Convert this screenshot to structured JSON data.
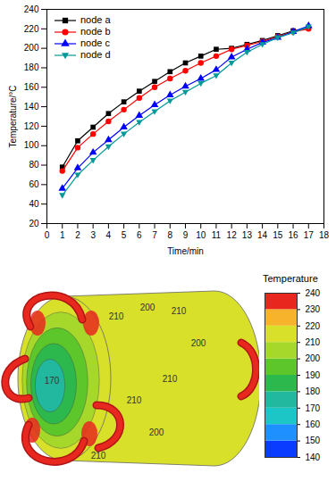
{
  "chart_data": [
    {
      "type": "line",
      "x_label": "Time/min",
      "y_label": "Temperature/°C",
      "x": [
        1,
        2,
        3,
        4,
        5,
        6,
        7,
        8,
        9,
        10,
        11,
        12,
        13,
        14,
        15,
        16,
        17
      ],
      "series": [
        {
          "name": "node a",
          "color": "#000000",
          "marker": "square",
          "values": [
            78,
            105,
            119,
            133,
            145,
            156,
            166,
            176,
            185,
            192,
            199,
            200,
            204,
            208,
            213,
            218,
            221
          ]
        },
        {
          "name": "node b",
          "color": "#ff0000",
          "marker": "circle",
          "values": [
            74,
            98,
            112,
            125,
            137,
            149,
            160,
            169,
            177,
            185,
            192,
            199,
            203,
            207,
            212,
            217,
            220
          ]
        },
        {
          "name": "node c",
          "color": "#0000ff",
          "marker": "triangle-up",
          "values": [
            56,
            77,
            93,
            106,
            119,
            131,
            142,
            152,
            161,
            169,
            178,
            191,
            199,
            206,
            211,
            217,
            223
          ]
        },
        {
          "name": "node d",
          "color": "#009999",
          "marker": "triangle-down",
          "values": [
            49,
            70,
            85,
            99,
            112,
            124,
            135,
            146,
            155,
            164,
            172,
            185,
            196,
            204,
            211,
            216,
            222
          ]
        }
      ],
      "xlim": [
        0,
        18
      ],
      "xticks": [
        0,
        1,
        2,
        3,
        4,
        5,
        6,
        7,
        8,
        9,
        10,
        11,
        12,
        13,
        14,
        15,
        16,
        17,
        18
      ],
      "ylim": [
        20,
        240
      ],
      "yticks": [
        20,
        40,
        60,
        80,
        100,
        120,
        140,
        160,
        180,
        200,
        220,
        240
      ],
      "legend": "upper left",
      "grid": false
    },
    {
      "type": "contour",
      "title": "Temperature",
      "colorbar_range": [
        140,
        240
      ],
      "colorbar_ticks": [
        140,
        150,
        160,
        170,
        180,
        190,
        200,
        210,
        220,
        230,
        240
      ],
      "colors": [
        "#0a3cff",
        "#1e90ff",
        "#1cc6c6",
        "#22b8a0",
        "#2db84d",
        "#5cc62b",
        "#a6d82c",
        "#d8e02a",
        "#f7b32b",
        "#e8281e"
      ],
      "surface": 210,
      "face_levels": [
        210,
        200,
        190,
        180,
        170
      ],
      "heater": 240,
      "contour_labels": [
        210,
        200,
        210,
        200,
        210,
        210,
        200,
        170,
        210
      ]
    }
  ]
}
